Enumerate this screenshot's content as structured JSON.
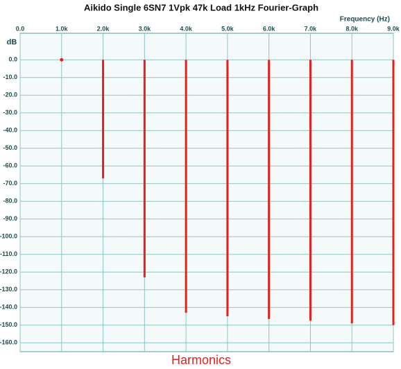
{
  "chart_data": {
    "type": "stem",
    "title": "Aikido Single 6SN7 1Vpk 47k Load 1kHz Fourier-Graph",
    "x_label": "Frequency  (Hz)",
    "y_label": "dB",
    "caption": "Harmonics",
    "color": "#e3201b",
    "x": [
      1000,
      2000,
      3000,
      4000,
      5000,
      6000,
      7000,
      8000,
      9000
    ],
    "values": [
      0,
      -67,
      -123,
      -143,
      -145,
      -146.5,
      -147.5,
      -149,
      -150
    ],
    "xlim": [
      0,
      9000
    ],
    "xticks": [
      {
        "value": 0,
        "label": "0.0"
      },
      {
        "value": 1000,
        "label": "1.0k"
      },
      {
        "value": 2000,
        "label": "2.0k"
      },
      {
        "value": 3000,
        "label": "3.0k"
      },
      {
        "value": 4000,
        "label": "4.0k"
      },
      {
        "value": 5000,
        "label": "5.0k"
      },
      {
        "value": 6000,
        "label": "6.0k"
      },
      {
        "value": 7000,
        "label": "7.0k"
      },
      {
        "value": 8000,
        "label": "8.0k"
      },
      {
        "value": 9000,
        "label": "9.0k"
      }
    ],
    "ylim": [
      -165,
      15
    ],
    "yticks": [
      {
        "value": 0,
        "label": "0.0"
      },
      {
        "value": -10,
        "label": "-10.0"
      },
      {
        "value": -20,
        "label": "-20.0"
      },
      {
        "value": -30,
        "label": "-30.0"
      },
      {
        "value": -40,
        "label": "-40.0"
      },
      {
        "value": -50,
        "label": "-50.0"
      },
      {
        "value": -60,
        "label": "-60.0"
      },
      {
        "value": -70,
        "label": "-70.0"
      },
      {
        "value": -80,
        "label": "-80.0"
      },
      {
        "value": -90,
        "label": "-90.0"
      },
      {
        "value": -100,
        "label": "-100.0"
      },
      {
        "value": -110,
        "label": "-110.0"
      },
      {
        "value": -120,
        "label": "-120.0"
      },
      {
        "value": -130,
        "label": "-130.0"
      },
      {
        "value": -140,
        "label": "-140.0"
      },
      {
        "value": -150,
        "label": "-150.0"
      },
      {
        "value": -160,
        "label": "-160.0"
      }
    ],
    "grid": true
  }
}
